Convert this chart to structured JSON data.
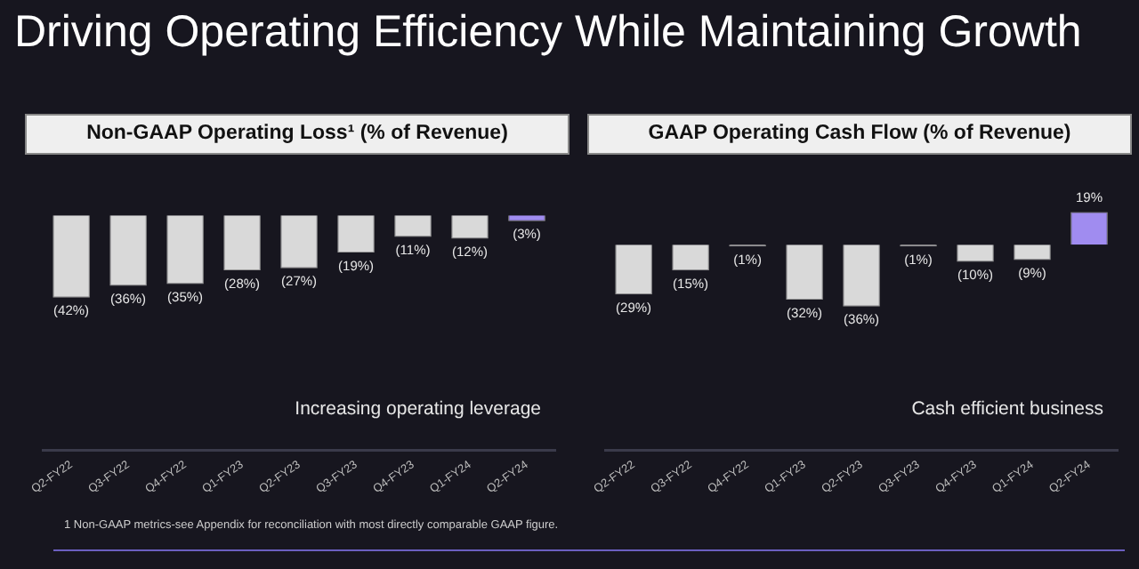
{
  "chart_data": [
    {
      "type": "bar",
      "title": "Non-GAAP Operating Loss¹ (% of Revenue)",
      "categories": [
        "Q2-FY22",
        "Q3-FY22",
        "Q4-FY22",
        "Q1-FY23",
        "Q2-FY23",
        "Q3-FY23",
        "Q4-FY23",
        "Q1-FY24",
        "Q2-FY24"
      ],
      "values": [
        -42,
        -36,
        -35,
        -28,
        -27,
        -19,
        -11,
        -12,
        -3
      ],
      "colors": [
        "#d9d9d9",
        "#d9d9d9",
        "#d9d9d9",
        "#d9d9d9",
        "#d9d9d9",
        "#d9d9d9",
        "#d9d9d9",
        "#d9d9d9",
        "#a08cf0"
      ],
      "value_labels": [
        "(42%)",
        "(36%)",
        "(35%)",
        "(28%)",
        "(27%)",
        "(19%)",
        "(11%)",
        "(12%)",
        "(3%)"
      ],
      "legend": false,
      "tick_labels": "x",
      "annotations": [
        "Driving Operating Efficiency While Maintaining Growth",
        "Increasing operating leverage",
        "1 Non-GAAP metrics-see Appendix for reconciliation with most directly comparable GAAP figure."
      ]
    },
    {
      "type": "bar",
      "title": "GAAP Operating Cash Flow (% of Revenue)",
      "categories": [
        "Q2-FY22",
        "Q3-FY22",
        "Q4-FY22",
        "Q1-FY23",
        "Q2-FY23",
        "Q3-FY23",
        "Q4-FY23",
        "Q1-FY24",
        "Q2-FY24"
      ],
      "values": [
        -29,
        -15,
        -1,
        -32,
        -36,
        -1,
        -10,
        -9,
        19
      ],
      "colors": [
        "#d9d9d9",
        "#d9d9d9",
        "#d9d9d9",
        "#d9d9d9",
        "#d9d9d9",
        "#d9d9d9",
        "#d9d9d9",
        "#d9d9d9",
        "#a08cf0"
      ],
      "value_labels": [
        "(29%)",
        "(15%)",
        "(1%)",
        "(32%)",
        "(36%)",
        "(1%)",
        "(10%)",
        "(9%)",
        "19%"
      ],
      "legend": false,
      "tick_labels": "x",
      "annotations": [
        "Cash efficient business"
      ]
    }
  ]
}
